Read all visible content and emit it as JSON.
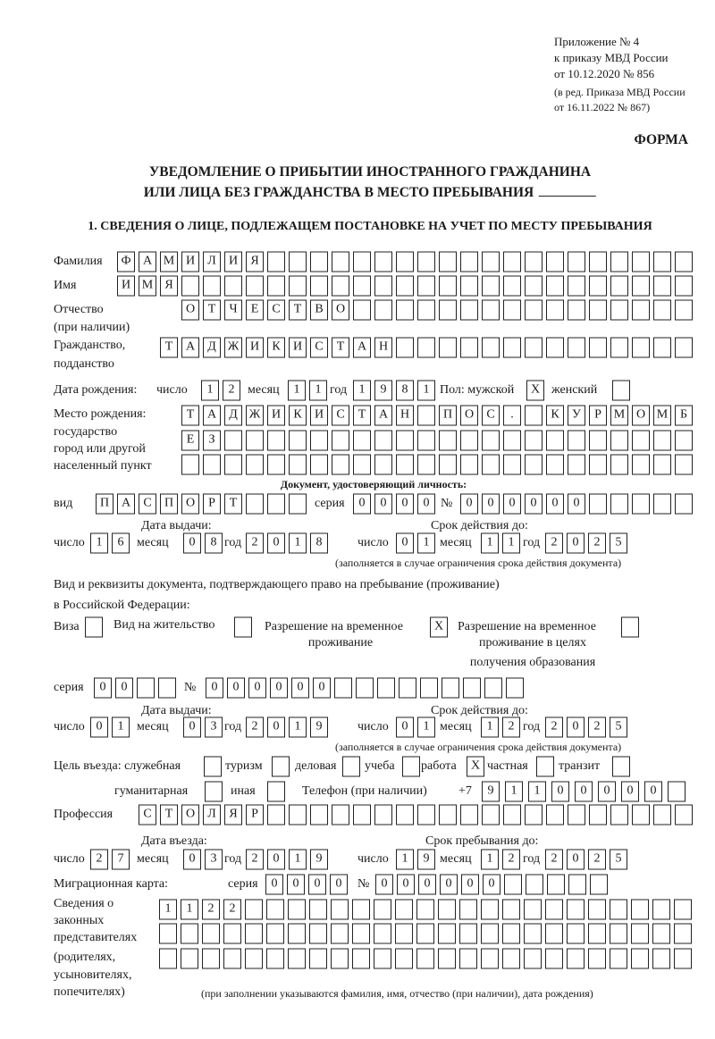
{
  "header": {
    "appendix": [
      "Приложение № 4",
      "к приказу МВД России",
      "от 10.12.2020 № 856"
    ],
    "amendment": [
      "(в ред. Приказа МВД России",
      "от 16.11.2022 № 867)"
    ],
    "form_label": "ФОРМА",
    "title": [
      "УВЕДОМЛЕНИЕ О ПРИБЫТИИ ИНОСТРАННОГО ГРАЖДАНИНА",
      "ИЛИ ЛИЦА БЕЗ ГРАЖДАНСТВА В МЕСТО ПРЕБЫВАНИЯ"
    ]
  },
  "section1": {
    "title": "1. СВЕДЕНИЯ О ЛИЦЕ, ПОДЛЕЖАЩЕМ ПОСТАНОВКЕ НА УЧЕТ ПО МЕСТУ ПРЕБЫВАНИЯ"
  },
  "labels": {
    "surname": "Фамилия",
    "first_name": "Имя",
    "patronymic": [
      "Отчество",
      "(при наличии)"
    ],
    "citizenship": [
      "Гражданство,",
      "подданство"
    ],
    "birth_date": "Дата рождения:",
    "day": "число",
    "month": "месяц",
    "year": "год",
    "sex_male": "Пол: мужской",
    "sex_female": "женский",
    "birthplace": [
      "Место рождения:",
      "государство",
      "город или другой",
      "населенный пункт"
    ],
    "id_doc": "Документ, удостоверяющий личность:",
    "kind": "вид",
    "series": "серия",
    "number": "№",
    "issue_date": "Дата выдачи:",
    "valid_until": "Срок действия до:",
    "validity_note": "(заполняется в случае ограничения срока действия документа)",
    "residence_doc": [
      "Вид и реквизиты документа, подтверждающего право на пребывание (проживание)",
      "в Российской Федерации:"
    ],
    "visa": "Виза",
    "residence_permit": "Вид на жительство",
    "trp": [
      "Разрешение на временное",
      "проживание"
    ],
    "trp_edu": [
      "Разрешение на временное",
      "проживание в целях",
      "получения образования"
    ],
    "purpose": "Цель въезда: служебная",
    "tourism": "туризм",
    "business": "деловая",
    "study": "учеба",
    "work": "работа",
    "private": "частная",
    "transit": "транзит",
    "humanitarian": "гуманитарная",
    "other": "иная",
    "phone": "Телефон (при наличии)",
    "phone_prefix": "+7",
    "profession": "Профессия",
    "entry_date": "Дата въезда:",
    "stay_until": "Срок пребывания до:",
    "migration_card": "Миграционная карта:",
    "representatives": [
      "Сведения о",
      "законных",
      "представителях",
      "(родителях,",
      "усыновителях,",
      "попечителях)"
    ],
    "representatives_note": "(при заполнении указываются фамилия, имя, отчество (при наличии), дата рождения)"
  },
  "values": {
    "surname": "ФАМИЛИЯ",
    "first_name": "ИМЯ",
    "patronymic": "ОТЧЕСТВО",
    "citizenship": "ТАДЖИКИСТАН",
    "birth": {
      "day": "12",
      "month": "11",
      "year": "1981"
    },
    "sex_male": "X",
    "sex_female": "",
    "birthplace": [
      "ТАДЖИКИСТАН ПОС. КУРМОМБ",
      "ЕЗ",
      ""
    ],
    "id_doc": {
      "kind": "ПАСПОРТ",
      "series": "0000",
      "number": "000000",
      "issue": {
        "day": "16",
        "month": "08",
        "year": "2018"
      },
      "valid": {
        "day": "01",
        "month": "11",
        "year": "2025"
      }
    },
    "residence": {
      "visa": "",
      "permit": "",
      "trp": "X",
      "trp_edu": "",
      "series": "00",
      "number": "000000",
      "issue": {
        "day": "01",
        "month": "03",
        "year": "2019"
      },
      "valid": {
        "day": "01",
        "month": "12",
        "year": "2025"
      }
    },
    "purpose": {
      "service": "",
      "tourism": "",
      "business": "",
      "study": "",
      "work": "X",
      "private": "",
      "transit": "",
      "humanitarian": "",
      "other": ""
    },
    "phone": "91100000",
    "profession": "СТОЛЯР",
    "entry": {
      "day": "27",
      "month": "03",
      "year": "2019"
    },
    "stay_until": {
      "day": "19",
      "month": "12",
      "year": "2025"
    },
    "migration_card": {
      "series": "0000",
      "number": "000000"
    },
    "representatives": [
      "1122",
      "",
      ""
    ]
  }
}
